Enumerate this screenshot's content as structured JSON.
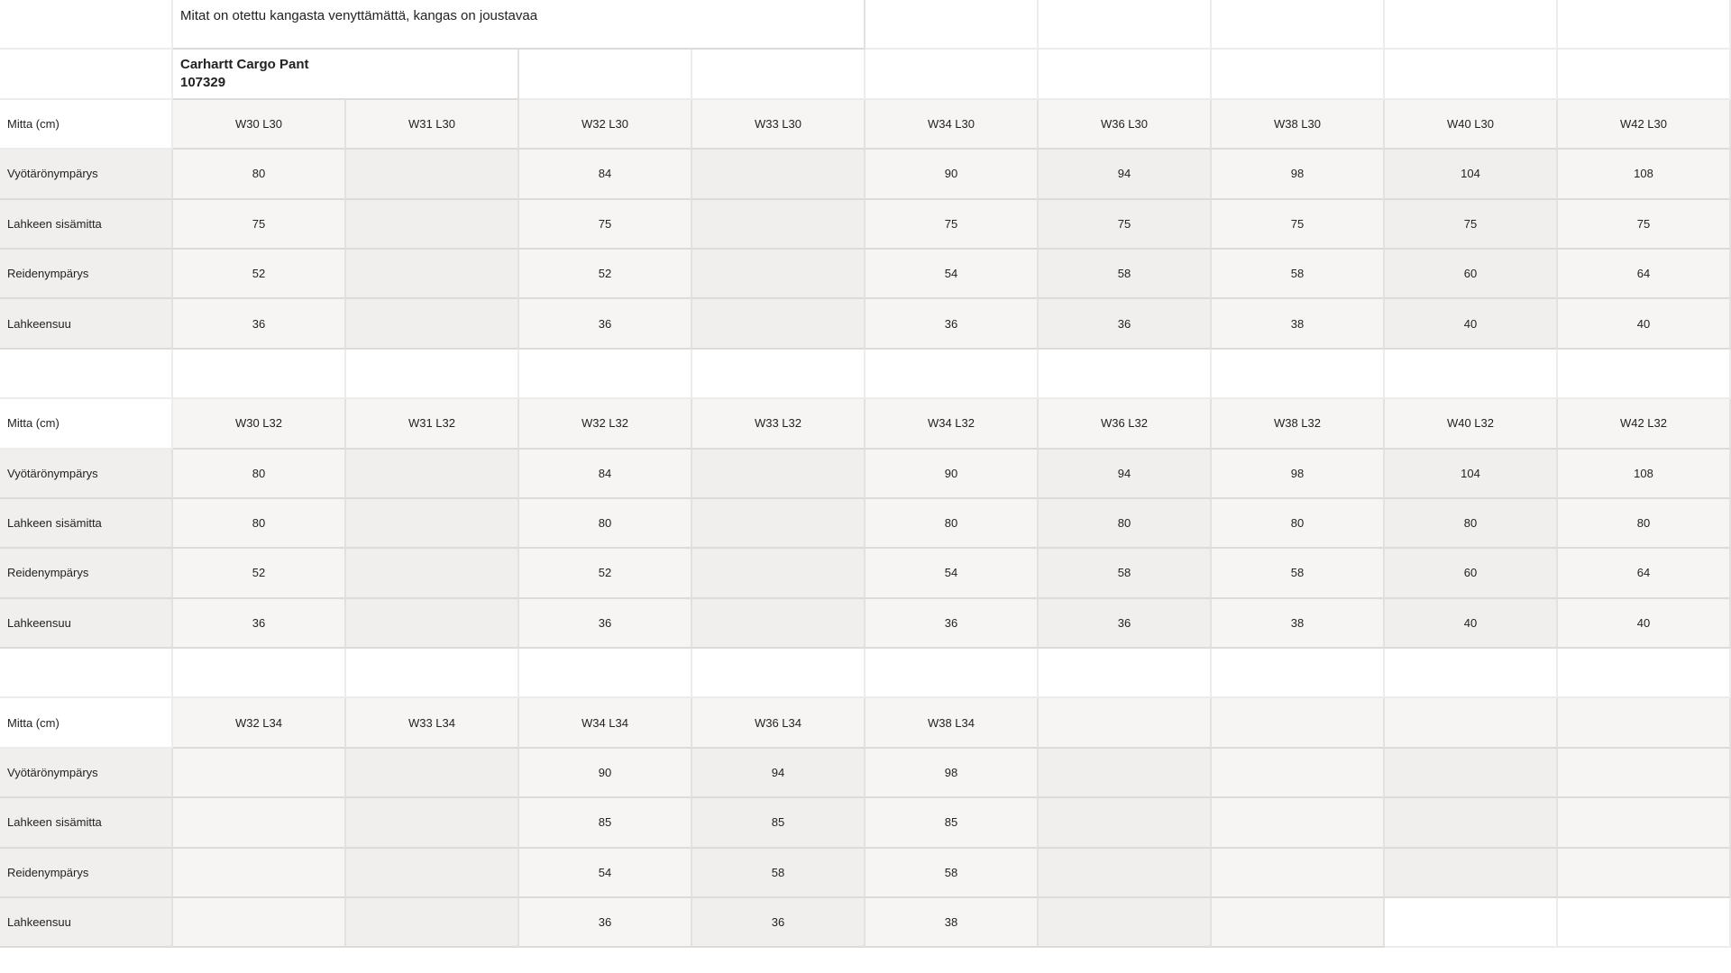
{
  "note": "Mitat on otettu kangasta venyttämättä, kangas on joustavaa",
  "product_title": "Carhartt Cargo Pant\n107329",
  "row_labels": {
    "header": "Mitta (cm)",
    "waist": "Vyötärönympärys",
    "inseam": "Lahkeen sisämitta",
    "thigh": "Reidenympärys",
    "hem": "Lahkeensuu"
  },
  "colors": {
    "light_cell": "#f6f5f3",
    "dark_cell": "#f0efed",
    "border": "#dcdbd9"
  },
  "blocks": [
    {
      "sizes": [
        "W30 L30",
        "W31 L30",
        "W32 L30",
        "W33 L30",
        "W34 L30",
        "W36 L30",
        "W38 L30",
        "W40 L30",
        "W42 L30"
      ],
      "waist": [
        "80",
        "",
        "84",
        "",
        "90",
        "94",
        "98",
        "104",
        "108"
      ],
      "inseam": [
        "75",
        "",
        "75",
        "",
        "75",
        "75",
        "75",
        "75",
        "75"
      ],
      "thigh": [
        "52",
        "",
        "52",
        "",
        "54",
        "58",
        "58",
        "60",
        "64"
      ],
      "hem": [
        "36",
        "",
        "36",
        "",
        "36",
        "36",
        "38",
        "40",
        "40"
      ]
    },
    {
      "sizes": [
        "W30 L32",
        "W31 L32",
        "W32 L32",
        "W33 L32",
        "W34 L32",
        "W36 L32",
        "W38 L32",
        "W40 L32",
        "W42 L32"
      ],
      "waist": [
        "80",
        "",
        "84",
        "",
        "90",
        "94",
        "98",
        "104",
        "108"
      ],
      "inseam": [
        "80",
        "",
        "80",
        "",
        "80",
        "80",
        "80",
        "80",
        "80"
      ],
      "thigh": [
        "52",
        "",
        "52",
        "",
        "54",
        "58",
        "58",
        "60",
        "64"
      ],
      "hem": [
        "36",
        "",
        "36",
        "",
        "36",
        "36",
        "38",
        "40",
        "40"
      ]
    },
    {
      "sizes": [
        "W32 L34",
        "W33 L34",
        "W34 L34",
        "W36 L34",
        "W38 L34",
        "",
        "",
        "",
        ""
      ],
      "waist": [
        "",
        "",
        "90",
        "94",
        "98",
        "",
        "",
        "",
        ""
      ],
      "inseam": [
        "",
        "",
        "85",
        "85",
        "85",
        "",
        "",
        "",
        ""
      ],
      "thigh": [
        "",
        "",
        "54",
        "58",
        "58",
        "",
        "",
        "",
        ""
      ],
      "hem": [
        "",
        "",
        "36",
        "36",
        "38",
        "",
        "",
        "",
        ""
      ]
    }
  ]
}
